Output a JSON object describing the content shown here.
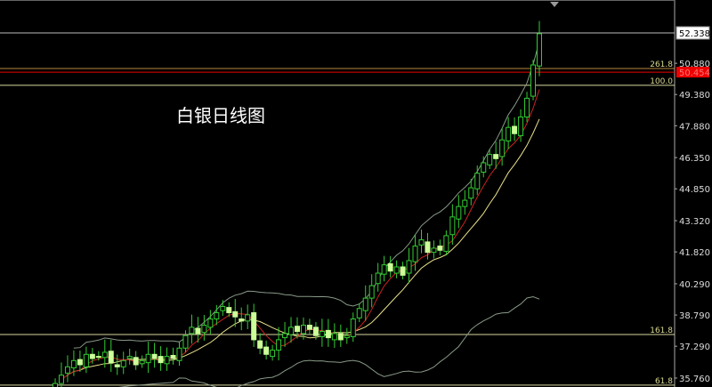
{
  "chart_title": "白银日线图",
  "colors": {
    "background": "#000000",
    "up_candle": "#33cc33",
    "down_candle": "#ccff99",
    "ma_fast": "#cc2222",
    "ma_slow": "#e8e08a",
    "bollinger": "#889988",
    "current_price": "#ee0000",
    "fib_line": "#d8d8a0",
    "axis": "#aaaaaa"
  },
  "chart_data": {
    "type": "candlestick",
    "title": "白银日线图",
    "ylim": [
      35.4,
      53.2
    ],
    "y_ticks": [
      "52.338",
      "50.880",
      "49.380",
      "47.880",
      "46.350",
      "44.850",
      "43.320",
      "41.820",
      "40.290",
      "38.790",
      "37.290",
      "35.760"
    ],
    "y_tick_values": [
      52.338,
      50.88,
      49.38,
      47.88,
      46.35,
      44.85,
      43.32,
      41.82,
      40.29,
      38.79,
      37.29,
      35.76
    ],
    "last_price_label": "52.338",
    "current_price": {
      "label": "50.454",
      "value": 50.454
    },
    "fib_levels": [
      {
        "label": "261.8",
        "value": 50.63
      },
      {
        "label": "100.0",
        "value": 49.82
      },
      {
        "label": "161.8",
        "value": 37.85
      },
      {
        "label": "61.8",
        "value": 35.42
      }
    ],
    "indicators": [
      "MA fast (red)",
      "MA slow (yellow)",
      "Bollinger bands"
    ],
    "closes": [
      35.5,
      35.9,
      36.3,
      36.6,
      36.4,
      36.9,
      36.7,
      36.8,
      37.0,
      36.5,
      36.3,
      36.6,
      36.8,
      36.4,
      36.6,
      36.9,
      36.7,
      36.5,
      36.8,
      36.7,
      37.2,
      37.8,
      38.2,
      37.9,
      38.3,
      38.6,
      38.9,
      39.2,
      38.9,
      38.7,
      38.5,
      38.8,
      37.6,
      37.2,
      36.9,
      37.1,
      37.6,
      37.9,
      38.2,
      38.0,
      38.3,
      38.1,
      37.8,
      38.0,
      37.7,
      37.9,
      37.6,
      37.8,
      38.6,
      39.1,
      39.6,
      40.2,
      40.8,
      41.2,
      40.9,
      41.1,
      40.7,
      41.4,
      42.1,
      42.4,
      41.8,
      42.0,
      41.9,
      42.6,
      43.5,
      44.0,
      44.3,
      44.9,
      45.6,
      46.1,
      46.5,
      46.3,
      47.2,
      47.8,
      47.5,
      48.3,
      49.2,
      50.8,
      52.3
    ]
  }
}
